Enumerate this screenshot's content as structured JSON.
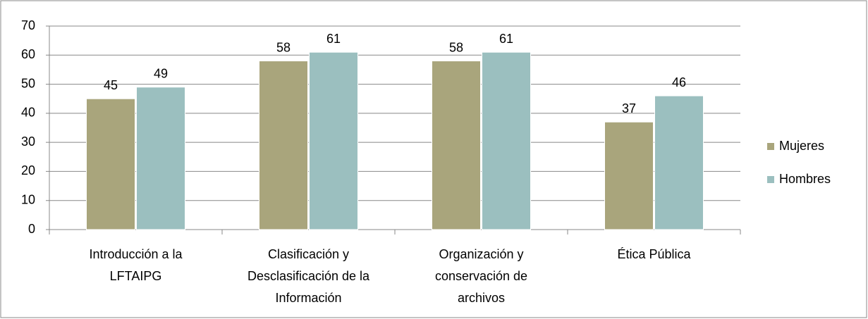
{
  "chart_data": {
    "type": "bar",
    "categories": [
      "Introducción a la LFTAIPG",
      "Clasificación y Desclasificación de la Información",
      "Organización y conservación de archivos",
      "Ética Pública"
    ],
    "series": [
      {
        "name": "Mujeres",
        "color": "#a9a57c",
        "values": [
          45,
          58,
          58,
          37
        ]
      },
      {
        "name": "Hombres",
        "color": "#9bbfbf",
        "values": [
          49,
          61,
          61,
          46
        ]
      }
    ],
    "ylim": [
      0,
      70
    ],
    "yticks": [
      0,
      10,
      20,
      30,
      40,
      50,
      60,
      70
    ],
    "grid": true,
    "legend": "right"
  }
}
